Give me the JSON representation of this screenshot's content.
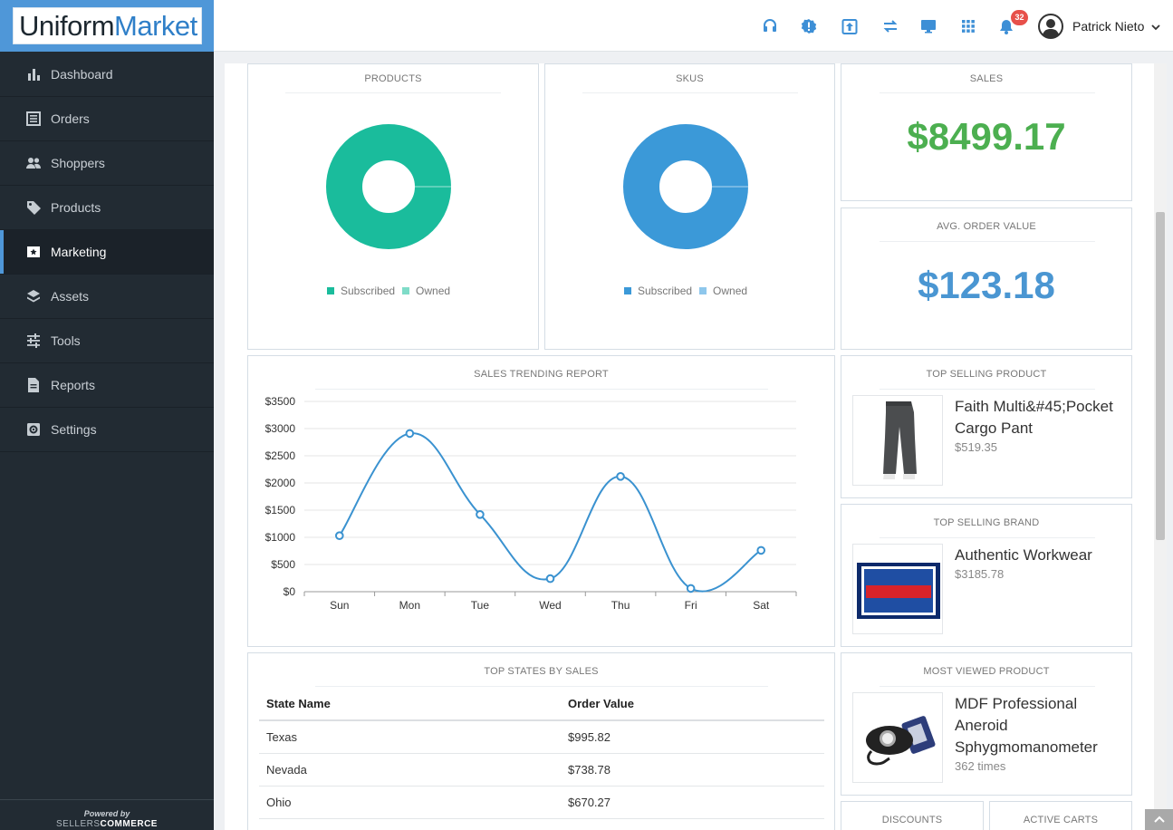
{
  "app": {
    "logo_part1": "Uniform",
    "logo_part2": "Market"
  },
  "sidebar": {
    "items": [
      {
        "label": "Dashboard",
        "icon": "bar-chart-icon"
      },
      {
        "label": "Orders",
        "icon": "list-icon"
      },
      {
        "label": "Shoppers",
        "icon": "people-icon"
      },
      {
        "label": "Products",
        "icon": "tag-icon"
      },
      {
        "label": "Marketing",
        "icon": "star-box-icon",
        "active": true
      },
      {
        "label": "Assets",
        "icon": "layers-icon"
      },
      {
        "label": "Tools",
        "icon": "sliders-icon"
      },
      {
        "label": "Reports",
        "icon": "document-icon"
      },
      {
        "label": "Settings",
        "icon": "gear-box-icon"
      }
    ],
    "powered_by": "Powered by",
    "powered_brand_1": "SELLERS",
    "powered_brand_2": "COMMERCE"
  },
  "topbar": {
    "icons": [
      "headset-icon",
      "alert-icon",
      "upload-icon",
      "sync-icon",
      "monitor-icon",
      "apps-grid-icon",
      "bell-icon"
    ],
    "notification_count": "32",
    "user_name": "Patrick Nieto"
  },
  "cards": {
    "products": {
      "title": "PRODUCTS",
      "legend": [
        "Subscribed",
        "Owned"
      ],
      "color_subscribed": "#1abc9c",
      "color_owned": "#7fdcc8"
    },
    "skus": {
      "title": "SKUS",
      "legend": [
        "Subscribed",
        "Owned"
      ],
      "color_subscribed": "#3b99d8",
      "color_owned": "#8ec7ec"
    },
    "sales": {
      "title": "SALES",
      "value": "$8499.17",
      "color": "#4caf50"
    },
    "avg_order": {
      "title": "AVG. ORDER VALUE",
      "value": "$123.18",
      "color": "#4a96d2"
    },
    "trend": {
      "title": "SALES TRENDING REPORT"
    },
    "top_product": {
      "title": "TOP SELLING PRODUCT",
      "name_line1": "Faith Multi&#45;Pocket",
      "name_line2": "Cargo Pant",
      "price": "$519.35"
    },
    "top_brand": {
      "title": "TOP SELLING BRAND",
      "name": "Authentic Workwear",
      "amount": "$3185.78"
    },
    "states": {
      "title": "TOP STATES BY SALES",
      "columns": [
        "State Name",
        "Order Value"
      ],
      "rows": [
        {
          "state": "Texas",
          "value": "$995.82"
        },
        {
          "state": "Nevada",
          "value": "$738.78"
        },
        {
          "state": "Ohio",
          "value": "$670.27"
        }
      ]
    },
    "most_viewed": {
      "title": "MOST VIEWED PRODUCT",
      "name_line1": "MDF Professional",
      "name_line2": "Aneroid",
      "name_line3": "Sphygmomanometer",
      "views": "362 times"
    },
    "discounts": {
      "title": "DISCOUNTS"
    },
    "active_carts": {
      "title": "ACTIVE CARTS"
    }
  },
  "chart_data": [
    {
      "type": "pie",
      "title": "PRODUCTS",
      "labels": [
        "Subscribed",
        "Owned"
      ],
      "values": [
        100,
        0
      ]
    },
    {
      "type": "pie",
      "title": "SKUS",
      "labels": [
        "Subscribed",
        "Owned"
      ],
      "values": [
        100,
        0
      ]
    },
    {
      "type": "line",
      "title": "SALES TRENDING REPORT",
      "categories": [
        "Sun",
        "Mon",
        "Tue",
        "Wed",
        "Thu",
        "Fri",
        "Sat"
      ],
      "values": [
        1030,
        2910,
        1420,
        240,
        2120,
        60,
        760
      ],
      "ylim": [
        0,
        3500
      ],
      "yticks": [
        "$0",
        "$500",
        "$1000",
        "$1500",
        "$2000",
        "$2500",
        "$3000",
        "$3500"
      ],
      "grid": true,
      "color": "#3a92d0"
    }
  ]
}
